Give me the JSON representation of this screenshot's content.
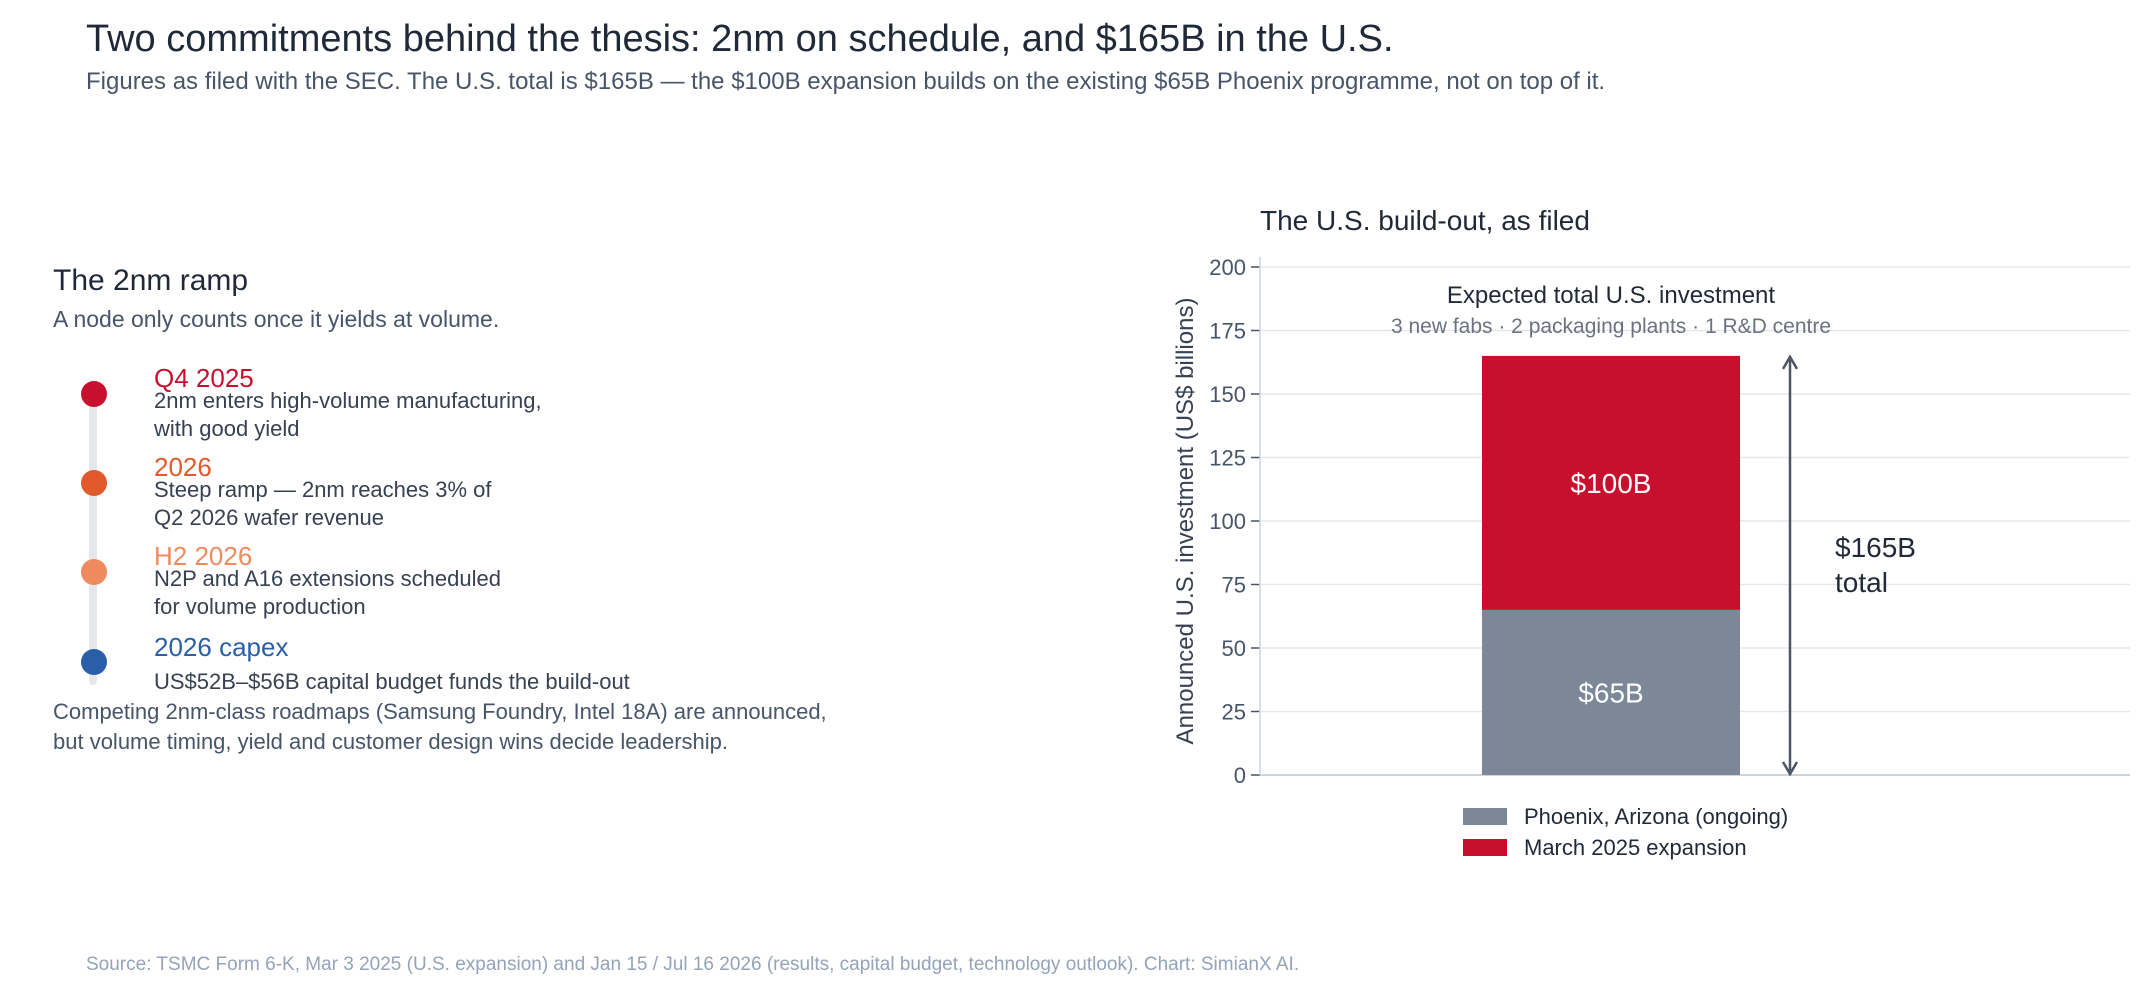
{
  "header": {
    "title": "Two commitments behind the thesis: 2nm on schedule, and $165B in the U.S.",
    "subtitle": "Figures as filed with the SEC. The U.S. total is $165B — the $100B expansion builds on the existing $65B Phoenix programme, not on top of it."
  },
  "ramp": {
    "heading": "The 2nm ramp",
    "subheading": "A node only counts once it yields at volume.",
    "milestones": [
      {
        "when": "Q4 2025",
        "what": "2nm enters high-volume manufacturing,\nwith good yield",
        "color": "#c8102e"
      },
      {
        "when": "2026",
        "what": "Steep ramp — 2nm reaches 3% of\nQ2 2026 wafer revenue",
        "color": "#e05a2b"
      },
      {
        "when": "H2 2026",
        "what": "N2P and A16 extensions scheduled\nfor volume production",
        "color": "#ee8a5e"
      },
      {
        "when": "2026 capex",
        "what": "US$52B–$56B capital budget funds the build-out",
        "color": "#2a5ea8"
      }
    ],
    "closing": "Competing 2nm-class roadmaps (Samsung Foundry, Intel 18A) are announced,\nbut volume timing, yield and customer design wins decide leadership."
  },
  "chart_data": {
    "type": "bar",
    "stacked": true,
    "title": "The U.S. build-out, as filed",
    "ylabel": "Announced U.S. investment (US$ billions)",
    "ylim": [
      0,
      200
    ],
    "yticks": [
      0,
      25,
      50,
      75,
      100,
      125,
      150,
      175,
      200
    ],
    "grid": true,
    "series": [
      {
        "name": "Phoenix, Arizona (ongoing)",
        "values": [
          65
        ],
        "label": "$65B",
        "color": "#7c8798"
      },
      {
        "name": "March 2025 expansion",
        "values": [
          100
        ],
        "label": "$100B",
        "color": "#c8102e"
      }
    ],
    "annotation": {
      "title": "Expected total U.S. investment",
      "detail": "3 new fabs · 2 packaging plants · 1 R&D centre",
      "total_line1": "$165B",
      "total_line2": "total",
      "total_value": 165
    },
    "legend_position": "bottom"
  },
  "footer": {
    "source": "Source: TSMC Form 6-K, Mar 3 2025 (U.S. expansion) and Jan 15 / Jul 16 2026 (results, capital budget, technology outlook). Chart: SimianX AI."
  }
}
